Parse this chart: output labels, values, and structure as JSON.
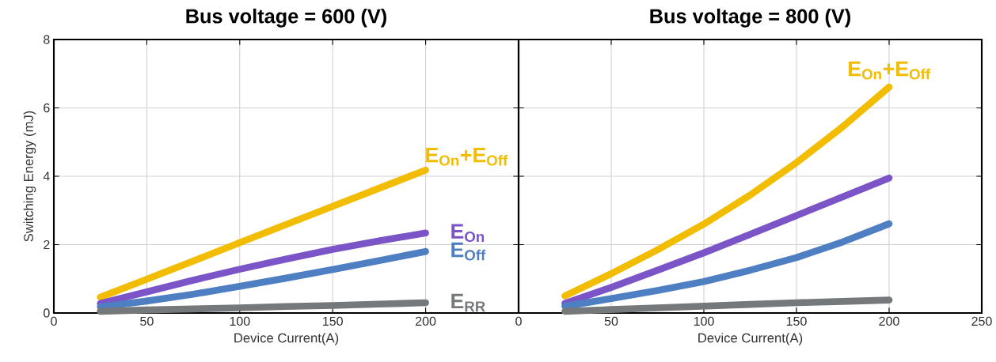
{
  "chart_data": [
    {
      "type": "line",
      "title": "Bus voltage = 600 (V)",
      "xlabel": "Device Current(A)",
      "ylabel": "Switching Energy (mJ)",
      "x": [
        25,
        50,
        75,
        100,
        125,
        150,
        175,
        200
      ],
      "xlim": [
        0,
        250
      ],
      "xticks": [
        0,
        50,
        100,
        150,
        200,
        {
          "value": 250,
          "label": null
        }
      ],
      "ylim": [
        0,
        8
      ],
      "yticks": [
        0,
        2,
        4,
        6,
        8
      ],
      "grid": true,
      "series": [
        {
          "name": "E$_{On}$+E$_{Off}$",
          "color": "#f2bc00",
          "values": [
            0.46,
            0.99,
            1.52,
            2.06,
            2.59,
            3.12,
            3.65,
            4.18
          ]
        },
        {
          "name": "E$_{On}$",
          "color": "#7b55c7",
          "values": [
            0.28,
            0.62,
            0.96,
            1.28,
            1.58,
            1.86,
            2.11,
            2.34
          ]
        },
        {
          "name": "E$_{Off}$",
          "color": "#4f7fc3",
          "values": [
            0.18,
            0.35,
            0.55,
            0.78,
            1.02,
            1.27,
            1.53,
            1.8
          ]
        },
        {
          "name": "E$_{RR}$",
          "color": "#76797b",
          "values": [
            0.05,
            0.09,
            0.12,
            0.15,
            0.19,
            0.22,
            0.26,
            0.3
          ]
        }
      ]
    },
    {
      "type": "line",
      "title": "Bus voltage = 800 (V)",
      "xlabel": "Device Current(A)",
      "x": [
        25,
        50,
        75,
        100,
        125,
        150,
        175,
        200
      ],
      "xlim": [
        0,
        250
      ],
      "xticks": [
        0,
        50,
        100,
        150,
        200,
        250
      ],
      "ylim": [
        0,
        8
      ],
      "yticks": [
        0,
        2,
        4,
        6,
        8
      ],
      "grid": true,
      "tick_labels": "x",
      "series": [
        {
          "name": "E$_{On}$+E$_{Off}$",
          "color": "#f2bc00",
          "values": [
            0.5,
            1.15,
            1.85,
            2.6,
            3.45,
            4.4,
            5.45,
            6.61
          ]
        },
        {
          "color": "#7b55c7",
          "values": [
            0.28,
            0.75,
            1.25,
            1.76,
            2.3,
            2.85,
            3.4,
            3.95
          ]
        },
        {
          "color": "#4f7fc3",
          "values": [
            0.2,
            0.42,
            0.66,
            0.92,
            1.25,
            1.62,
            2.08,
            2.61
          ]
        },
        {
          "color": "#76797b",
          "values": [
            0.05,
            0.1,
            0.15,
            0.2,
            0.25,
            0.3,
            0.34,
            0.38
          ]
        }
      ]
    }
  ]
}
